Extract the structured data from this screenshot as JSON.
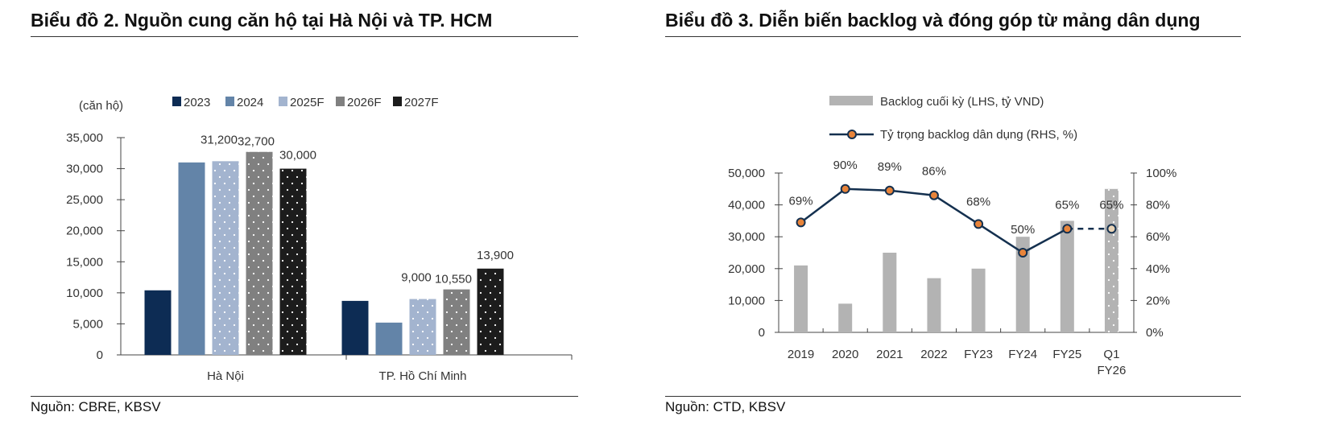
{
  "chart_data": [
    {
      "type": "bar",
      "title": "Biểu đồ 2. Nguồn cung căn hộ tại Hà Nội và TP. HCM",
      "ylabel": "(căn hộ)",
      "xlabel": "",
      "categories": [
        "Hà Nội",
        "TP. Hồ Chí Minh"
      ],
      "ylim": [
        0,
        35000
      ],
      "yticks": [
        "0",
        "5,000",
        "10,000",
        "15,000",
        "20,000",
        "25,000",
        "30,000",
        "35,000"
      ],
      "series": [
        {
          "name": "2023",
          "color": "#0d2c54",
          "pattern": false,
          "values": [
            10400,
            8700
          ],
          "labels": [
            "",
            ""
          ]
        },
        {
          "name": "2024",
          "color": "#6384a8",
          "pattern": false,
          "values": [
            31000,
            5200
          ],
          "labels": [
            "",
            ""
          ]
        },
        {
          "name": "2025F",
          "color": "#a3b4cf",
          "pattern": true,
          "values": [
            31200,
            9000
          ],
          "labels": [
            "31,200",
            "9,000"
          ]
        },
        {
          "name": "2026F",
          "color": "#808080",
          "pattern": true,
          "values": [
            32700,
            10550
          ],
          "labels": [
            "32,700",
            "10,550"
          ]
        },
        {
          "name": "2027F",
          "color": "#1c1c1c",
          "pattern": true,
          "values": [
            30000,
            13900
          ],
          "labels": [
            "30,000",
            "13,900"
          ]
        }
      ],
      "legend": "top",
      "source": "Nguồn: CBRE, KBSV"
    },
    {
      "type": "bar+line",
      "title": "Biểu đồ 3. Diễn biến backlog và đóng góp từ mảng dân dụng",
      "categories": [
        "2019",
        "2020",
        "2021",
        "2022",
        "FY23",
        "FY24",
        "FY25",
        "Q1 FY26"
      ],
      "ylim": [
        0,
        50000
      ],
      "y2lim": [
        0,
        100
      ],
      "yticks": [
        "0",
        "10,000",
        "20,000",
        "30,000",
        "40,000",
        "50,000"
      ],
      "y2ticks": [
        "0%",
        "20%",
        "40%",
        "60%",
        "80%",
        "100%"
      ],
      "series": [
        {
          "name": "Backlog cuối kỳ (LHS, tỷ VND)",
          "type": "bar",
          "color": "#b3b3b3",
          "values": [
            21000,
            9000,
            25000,
            17000,
            20000,
            30000,
            35000,
            45000
          ]
        },
        {
          "name": "Tỷ trọng backlog dân dụng (RHS, %)",
          "type": "line",
          "color": "#14304f",
          "marker": "#e8843a",
          "values": [
            69,
            90,
            89,
            86,
            68,
            50,
            65,
            65
          ],
          "labels": [
            "69%",
            "90%",
            "89%",
            "86%",
            "68%",
            "50%",
            "65%",
            "65%"
          ]
        }
      ],
      "legend": "top",
      "source": "Nguồn: CTD, KBSV"
    }
  ]
}
